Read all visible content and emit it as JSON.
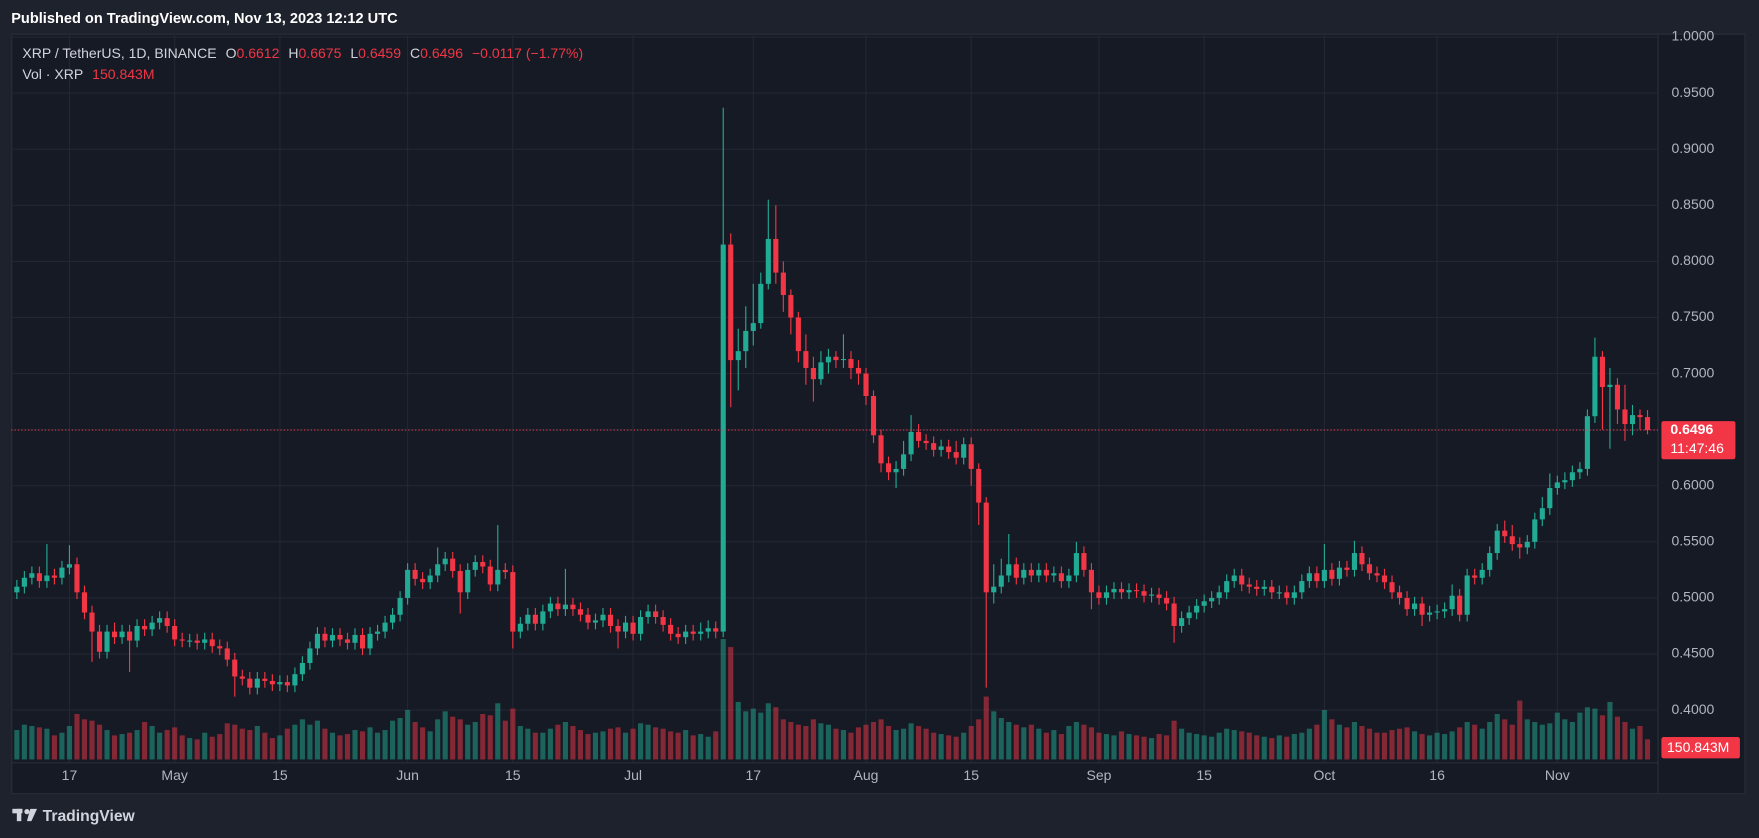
{
  "header": {
    "published": "Published on TradingView.com, Nov 13, 2023 12:12 UTC",
    "footer": "TradingView"
  },
  "chart_data": {
    "type": "candlestick",
    "title": "XRP / TetherUS, 1D, BINANCE",
    "ohlc_labels": [
      "O",
      "H",
      "L",
      "C"
    ],
    "change_label": "−0.0117 (−1.77%)",
    "volume_title": "Vol · XRP",
    "volume_last_label": "150.843M",
    "countdown": "11:47:46",
    "up_color": "#22ab94",
    "down_color": "#f23645",
    "grid": true,
    "xlim": [
      -0.75,
      218.4
    ],
    "xticks": [
      {
        "value": 7,
        "label": "17"
      },
      {
        "value": 21,
        "label": "May"
      },
      {
        "value": 35,
        "label": "15"
      },
      {
        "value": 52,
        "label": "Jun"
      },
      {
        "value": 66,
        "label": "15"
      },
      {
        "value": 82,
        "label": "Jul"
      },
      {
        "value": 98,
        "label": "17"
      },
      {
        "value": 113,
        "label": "Aug"
      },
      {
        "value": 127,
        "label": "15"
      },
      {
        "value": 144,
        "label": "Sep"
      },
      {
        "value": 158,
        "label": "15"
      },
      {
        "value": 174,
        "label": "Oct"
      },
      {
        "value": 189,
        "label": "16"
      },
      {
        "value": 205,
        "label": "Nov"
      }
    ],
    "ylim": [
      0.356,
      1.003
    ],
    "yticks": [
      {
        "value": 0.4,
        "label": "0.4000"
      },
      {
        "value": 0.45,
        "label": "0.4500"
      },
      {
        "value": 0.5,
        "label": "0.5000"
      },
      {
        "value": 0.55,
        "label": "0.5500"
      },
      {
        "value": 0.6,
        "label": "0.6000"
      },
      {
        "value": 0.65,
        "label": "0.6500"
      },
      {
        "value": 0.7,
        "label": "0.7000"
      },
      {
        "value": 0.75,
        "label": "0.7500"
      },
      {
        "value": 0.8,
        "label": "0.8000"
      },
      {
        "value": 0.85,
        "label": "0.8500"
      },
      {
        "value": 0.9,
        "label": "0.9000"
      },
      {
        "value": 0.95,
        "label": "0.9500"
      },
      {
        "value": 1.0,
        "label": "1.0000"
      }
    ],
    "volume_lim": [
      0,
      1400
    ],
    "open": [
      0.505,
      0.51,
      0.518,
      0.522,
      0.515,
      0.52,
      0.518,
      0.527,
      0.53,
      0.505,
      0.487,
      0.47,
      0.452,
      0.47,
      0.465,
      0.47,
      0.462,
      0.475,
      0.472,
      0.478,
      0.482,
      0.475,
      0.463,
      0.462,
      0.462,
      0.46,
      0.463,
      0.457,
      0.455,
      0.445,
      0.43,
      0.428,
      0.42,
      0.428,
      0.426,
      0.423,
      0.425,
      0.422,
      0.432,
      0.442,
      0.455,
      0.468,
      0.462,
      0.467,
      0.463,
      0.46,
      0.467,
      0.455,
      0.468,
      0.47,
      0.478,
      0.485,
      0.5,
      0.525,
      0.517,
      0.514,
      0.52,
      0.53,
      0.535,
      0.524,
      0.505,
      0.525,
      0.532,
      0.528,
      0.512,
      0.525,
      0.523,
      0.47,
      0.477,
      0.485,
      0.477,
      0.488,
      0.495,
      0.49,
      0.494,
      0.49,
      0.485,
      0.478,
      0.48,
      0.485,
      0.475,
      0.47,
      0.478,
      0.468,
      0.483,
      0.488,
      0.483,
      0.476,
      0.468,
      0.465,
      0.47,
      0.468,
      0.47,
      0.473,
      0.47,
      0.815,
      0.712,
      0.72,
      0.738,
      0.745,
      0.78,
      0.82,
      0.79,
      0.77,
      0.75,
      0.72,
      0.705,
      0.695,
      0.71,
      0.715,
      0.712,
      0.713,
      0.705,
      0.7,
      0.68,
      0.645,
      0.62,
      0.612,
      0.615,
      0.628,
      0.648,
      0.64,
      0.638,
      0.632,
      0.635,
      0.63,
      0.625,
      0.637,
      0.615,
      0.585,
      0.505,
      0.51,
      0.52,
      0.53,
      0.518,
      0.525,
      0.52,
      0.525,
      0.52,
      0.522,
      0.515,
      0.52,
      0.54,
      0.525,
      0.505,
      0.5,
      0.505,
      0.508,
      0.505,
      0.507,
      0.506,
      0.502,
      0.503,
      0.5,
      0.495,
      0.475,
      0.482,
      0.487,
      0.493,
      0.497,
      0.5,
      0.505,
      0.515,
      0.52,
      0.512,
      0.51,
      0.508,
      0.51,
      0.505,
      0.505,
      0.5,
      0.505,
      0.515,
      0.522,
      0.515,
      0.525,
      0.517,
      0.527,
      0.525,
      0.54,
      0.53,
      0.522,
      0.52,
      0.514,
      0.505,
      0.5,
      0.49,
      0.495,
      0.485,
      0.487,
      0.488,
      0.49,
      0.502,
      0.485,
      0.52,
      0.518,
      0.525,
      0.54,
      0.56,
      0.555,
      0.548,
      0.545,
      0.55,
      0.57,
      0.58,
      0.598,
      0.603,
      0.605,
      0.612,
      0.615,
      0.662,
      0.715,
      0.688,
      0.69,
      0.668,
      0.655,
      0.663,
      0.6612
    ],
    "high": [
      0.516,
      0.524,
      0.528,
      0.528,
      0.548,
      0.526,
      0.533,
      0.547,
      0.536,
      0.511,
      0.493,
      0.476,
      0.476,
      0.478,
      0.476,
      0.476,
      0.481,
      0.481,
      0.484,
      0.488,
      0.488,
      0.481,
      0.469,
      0.468,
      0.468,
      0.469,
      0.469,
      0.463,
      0.461,
      0.451,
      0.436,
      0.434,
      0.434,
      0.434,
      0.432,
      0.431,
      0.431,
      0.438,
      0.448,
      0.461,
      0.474,
      0.474,
      0.473,
      0.473,
      0.469,
      0.473,
      0.473,
      0.474,
      0.476,
      0.484,
      0.491,
      0.506,
      0.531,
      0.531,
      0.523,
      0.526,
      0.545,
      0.541,
      0.541,
      0.53,
      0.531,
      0.538,
      0.538,
      0.534,
      0.565,
      0.531,
      0.529,
      0.483,
      0.491,
      0.491,
      0.494,
      0.501,
      0.501,
      0.526,
      0.5,
      0.496,
      0.491,
      0.486,
      0.491,
      0.491,
      0.481,
      0.484,
      0.484,
      0.489,
      0.494,
      0.494,
      0.489,
      0.482,
      0.474,
      0.476,
      0.476,
      0.478,
      0.48,
      0.479,
      0.937,
      0.825,
      0.74,
      0.76,
      0.78,
      0.79,
      0.855,
      0.85,
      0.8,
      0.775,
      0.755,
      0.735,
      0.715,
      0.72,
      0.722,
      0.72,
      0.735,
      0.72,
      0.712,
      0.705,
      0.685,
      0.65,
      0.626,
      0.622,
      0.64,
      0.663,
      0.655,
      0.646,
      0.644,
      0.641,
      0.641,
      0.64,
      0.643,
      0.643,
      0.62,
      0.59,
      0.53,
      0.535,
      0.557,
      0.536,
      0.531,
      0.531,
      0.531,
      0.531,
      0.528,
      0.528,
      0.526,
      0.55,
      0.546,
      0.531,
      0.511,
      0.511,
      0.514,
      0.514,
      0.513,
      0.513,
      0.512,
      0.509,
      0.509,
      0.506,
      0.501,
      0.488,
      0.493,
      0.499,
      0.503,
      0.506,
      0.511,
      0.521,
      0.526,
      0.526,
      0.518,
      0.516,
      0.516,
      0.516,
      0.511,
      0.511,
      0.511,
      0.521,
      0.528,
      0.528,
      0.548,
      0.531,
      0.533,
      0.533,
      0.551,
      0.546,
      0.536,
      0.528,
      0.526,
      0.52,
      0.511,
      0.506,
      0.501,
      0.501,
      0.493,
      0.494,
      0.496,
      0.512,
      0.508,
      0.526,
      0.526,
      0.531,
      0.546,
      0.566,
      0.569,
      0.565,
      0.554,
      0.556,
      0.576,
      0.59,
      0.611,
      0.609,
      0.612,
      0.618,
      0.621,
      0.668,
      0.732,
      0.72,
      0.705,
      0.696,
      0.69,
      0.672,
      0.668,
      0.6675
    ],
    "low": [
      0.499,
      0.504,
      0.512,
      0.509,
      0.509,
      0.512,
      0.512,
      0.521,
      0.499,
      0.481,
      0.443,
      0.446,
      0.446,
      0.459,
      0.459,
      0.434,
      0.456,
      0.466,
      0.466,
      0.472,
      0.469,
      0.457,
      0.456,
      0.456,
      0.454,
      0.454,
      0.451,
      0.449,
      0.439,
      0.412,
      0.422,
      0.414,
      0.414,
      0.42,
      0.417,
      0.417,
      0.416,
      0.416,
      0.426,
      0.436,
      0.449,
      0.456,
      0.456,
      0.457,
      0.454,
      0.454,
      0.449,
      0.449,
      0.462,
      0.464,
      0.472,
      0.479,
      0.494,
      0.511,
      0.508,
      0.508,
      0.514,
      0.524,
      0.518,
      0.486,
      0.499,
      0.519,
      0.522,
      0.506,
      0.506,
      0.517,
      0.455,
      0.464,
      0.471,
      0.471,
      0.471,
      0.482,
      0.484,
      0.484,
      0.484,
      0.479,
      0.472,
      0.472,
      0.474,
      0.469,
      0.455,
      0.464,
      0.462,
      0.462,
      0.477,
      0.477,
      0.47,
      0.462,
      0.459,
      0.459,
      0.462,
      0.462,
      0.464,
      0.464,
      0.465,
      0.67,
      0.685,
      0.705,
      0.725,
      0.74,
      0.775,
      0.78,
      0.755,
      0.735,
      0.71,
      0.69,
      0.675,
      0.69,
      0.7,
      0.705,
      0.705,
      0.695,
      0.69,
      0.672,
      0.638,
      0.612,
      0.605,
      0.598,
      0.609,
      0.622,
      0.634,
      0.632,
      0.626,
      0.626,
      0.624,
      0.619,
      0.619,
      0.6,
      0.565,
      0.42,
      0.495,
      0.504,
      0.514,
      0.512,
      0.512,
      0.514,
      0.514,
      0.514,
      0.514,
      0.509,
      0.509,
      0.514,
      0.519,
      0.49,
      0.494,
      0.494,
      0.499,
      0.499,
      0.499,
      0.5,
      0.496,
      0.496,
      0.494,
      0.489,
      0.46,
      0.469,
      0.476,
      0.481,
      0.487,
      0.491,
      0.494,
      0.499,
      0.509,
      0.506,
      0.504,
      0.502,
      0.502,
      0.499,
      0.499,
      0.494,
      0.494,
      0.499,
      0.509,
      0.509,
      0.509,
      0.511,
      0.511,
      0.519,
      0.519,
      0.524,
      0.516,
      0.514,
      0.508,
      0.499,
      0.494,
      0.484,
      0.484,
      0.475,
      0.479,
      0.481,
      0.482,
      0.484,
      0.479,
      0.479,
      0.512,
      0.512,
      0.519,
      0.534,
      0.549,
      0.542,
      0.535,
      0.539,
      0.544,
      0.564,
      0.574,
      0.592,
      0.597,
      0.599,
      0.606,
      0.609,
      0.656,
      0.65,
      0.633,
      0.655,
      0.64,
      0.645,
      0.65,
      0.6459
    ],
    "close": [
      0.51,
      0.518,
      0.522,
      0.515,
      0.52,
      0.518,
      0.527,
      0.53,
      0.505,
      0.487,
      0.47,
      0.452,
      0.47,
      0.465,
      0.47,
      0.462,
      0.475,
      0.472,
      0.478,
      0.482,
      0.475,
      0.463,
      0.462,
      0.462,
      0.46,
      0.463,
      0.457,
      0.455,
      0.445,
      0.43,
      0.428,
      0.42,
      0.428,
      0.426,
      0.423,
      0.425,
      0.422,
      0.432,
      0.442,
      0.455,
      0.468,
      0.462,
      0.467,
      0.463,
      0.46,
      0.467,
      0.455,
      0.468,
      0.47,
      0.478,
      0.485,
      0.5,
      0.525,
      0.517,
      0.514,
      0.52,
      0.53,
      0.535,
      0.524,
      0.505,
      0.525,
      0.532,
      0.528,
      0.512,
      0.525,
      0.523,
      0.47,
      0.477,
      0.485,
      0.477,
      0.488,
      0.495,
      0.49,
      0.494,
      0.49,
      0.485,
      0.478,
      0.48,
      0.485,
      0.475,
      0.47,
      0.478,
      0.468,
      0.483,
      0.488,
      0.483,
      0.476,
      0.468,
      0.465,
      0.47,
      0.468,
      0.47,
      0.473,
      0.47,
      0.815,
      0.712,
      0.72,
      0.738,
      0.745,
      0.78,
      0.82,
      0.79,
      0.77,
      0.75,
      0.72,
      0.705,
      0.695,
      0.71,
      0.715,
      0.712,
      0.713,
      0.705,
      0.7,
      0.68,
      0.645,
      0.62,
      0.612,
      0.615,
      0.628,
      0.648,
      0.64,
      0.638,
      0.632,
      0.635,
      0.63,
      0.625,
      0.637,
      0.615,
      0.585,
      0.505,
      0.51,
      0.52,
      0.53,
      0.518,
      0.525,
      0.52,
      0.525,
      0.52,
      0.522,
      0.515,
      0.52,
      0.54,
      0.525,
      0.505,
      0.5,
      0.505,
      0.508,
      0.505,
      0.507,
      0.506,
      0.502,
      0.503,
      0.5,
      0.495,
      0.475,
      0.482,
      0.487,
      0.493,
      0.497,
      0.5,
      0.505,
      0.515,
      0.52,
      0.512,
      0.51,
      0.508,
      0.51,
      0.505,
      0.505,
      0.5,
      0.505,
      0.515,
      0.522,
      0.515,
      0.525,
      0.517,
      0.527,
      0.525,
      0.54,
      0.53,
      0.522,
      0.52,
      0.514,
      0.505,
      0.5,
      0.49,
      0.495,
      0.485,
      0.487,
      0.488,
      0.49,
      0.502,
      0.485,
      0.52,
      0.518,
      0.525,
      0.54,
      0.56,
      0.555,
      0.548,
      0.545,
      0.55,
      0.57,
      0.58,
      0.598,
      0.603,
      0.605,
      0.612,
      0.615,
      0.662,
      0.715,
      0.688,
      0.69,
      0.668,
      0.655,
      0.663,
      0.6612,
      0.6496
    ],
    "volume": [
      220,
      260,
      250,
      240,
      230,
      180,
      200,
      250,
      340,
      300,
      290,
      260,
      220,
      180,
      190,
      200,
      220,
      280,
      250,
      200,
      220,
      240,
      180,
      160,
      150,
      200,
      170,
      190,
      270,
      260,
      230,
      220,
      250,
      200,
      160,
      180,
      230,
      260,
      300,
      260,
      290,
      230,
      200,
      180,
      190,
      220,
      210,
      240,
      200,
      220,
      290,
      310,
      370,
      280,
      240,
      210,
      300,
      360,
      320,
      300,
      260,
      280,
      340,
      330,
      420,
      290,
      380,
      250,
      230,
      200,
      200,
      230,
      260,
      280,
      250,
      220,
      190,
      200,
      210,
      230,
      240,
      200,
      230,
      270,
      260,
      240,
      230,
      210,
      200,
      220,
      180,
      190,
      170,
      210,
      900,
      840,
      430,
      360,
      380,
      350,
      420,
      390,
      300,
      280,
      260,
      250,
      300,
      270,
      260,
      230,
      220,
      200,
      240,
      260,
      280,
      300,
      250,
      220,
      230,
      270,
      250,
      230,
      200,
      190,
      180,
      170,
      200,
      250,
      300,
      470,
      360,
      310,
      280,
      260,
      240,
      260,
      230,
      200,
      220,
      190,
      250,
      280,
      260,
      240,
      200,
      190,
      180,
      210,
      190,
      180,
      170,
      160,
      190,
      180,
      290,
      230,
      200,
      190,
      180,
      170,
      200,
      230,
      220,
      210,
      200,
      180,
      170,
      160,
      180,
      170,
      190,
      200,
      230,
      260,
      370,
      300,
      260,
      240,
      280,
      250,
      230,
      200,
      200,
      220,
      230,
      240,
      210,
      190,
      180,
      200,
      190,
      210,
      240,
      280,
      260,
      230,
      280,
      340,
      300,
      260,
      440,
      300,
      280,
      260,
      270,
      350,
      300,
      280,
      350,
      390,
      380,
      330,
      430,
      320,
      280,
      230,
      250,
      150.843
    ]
  }
}
